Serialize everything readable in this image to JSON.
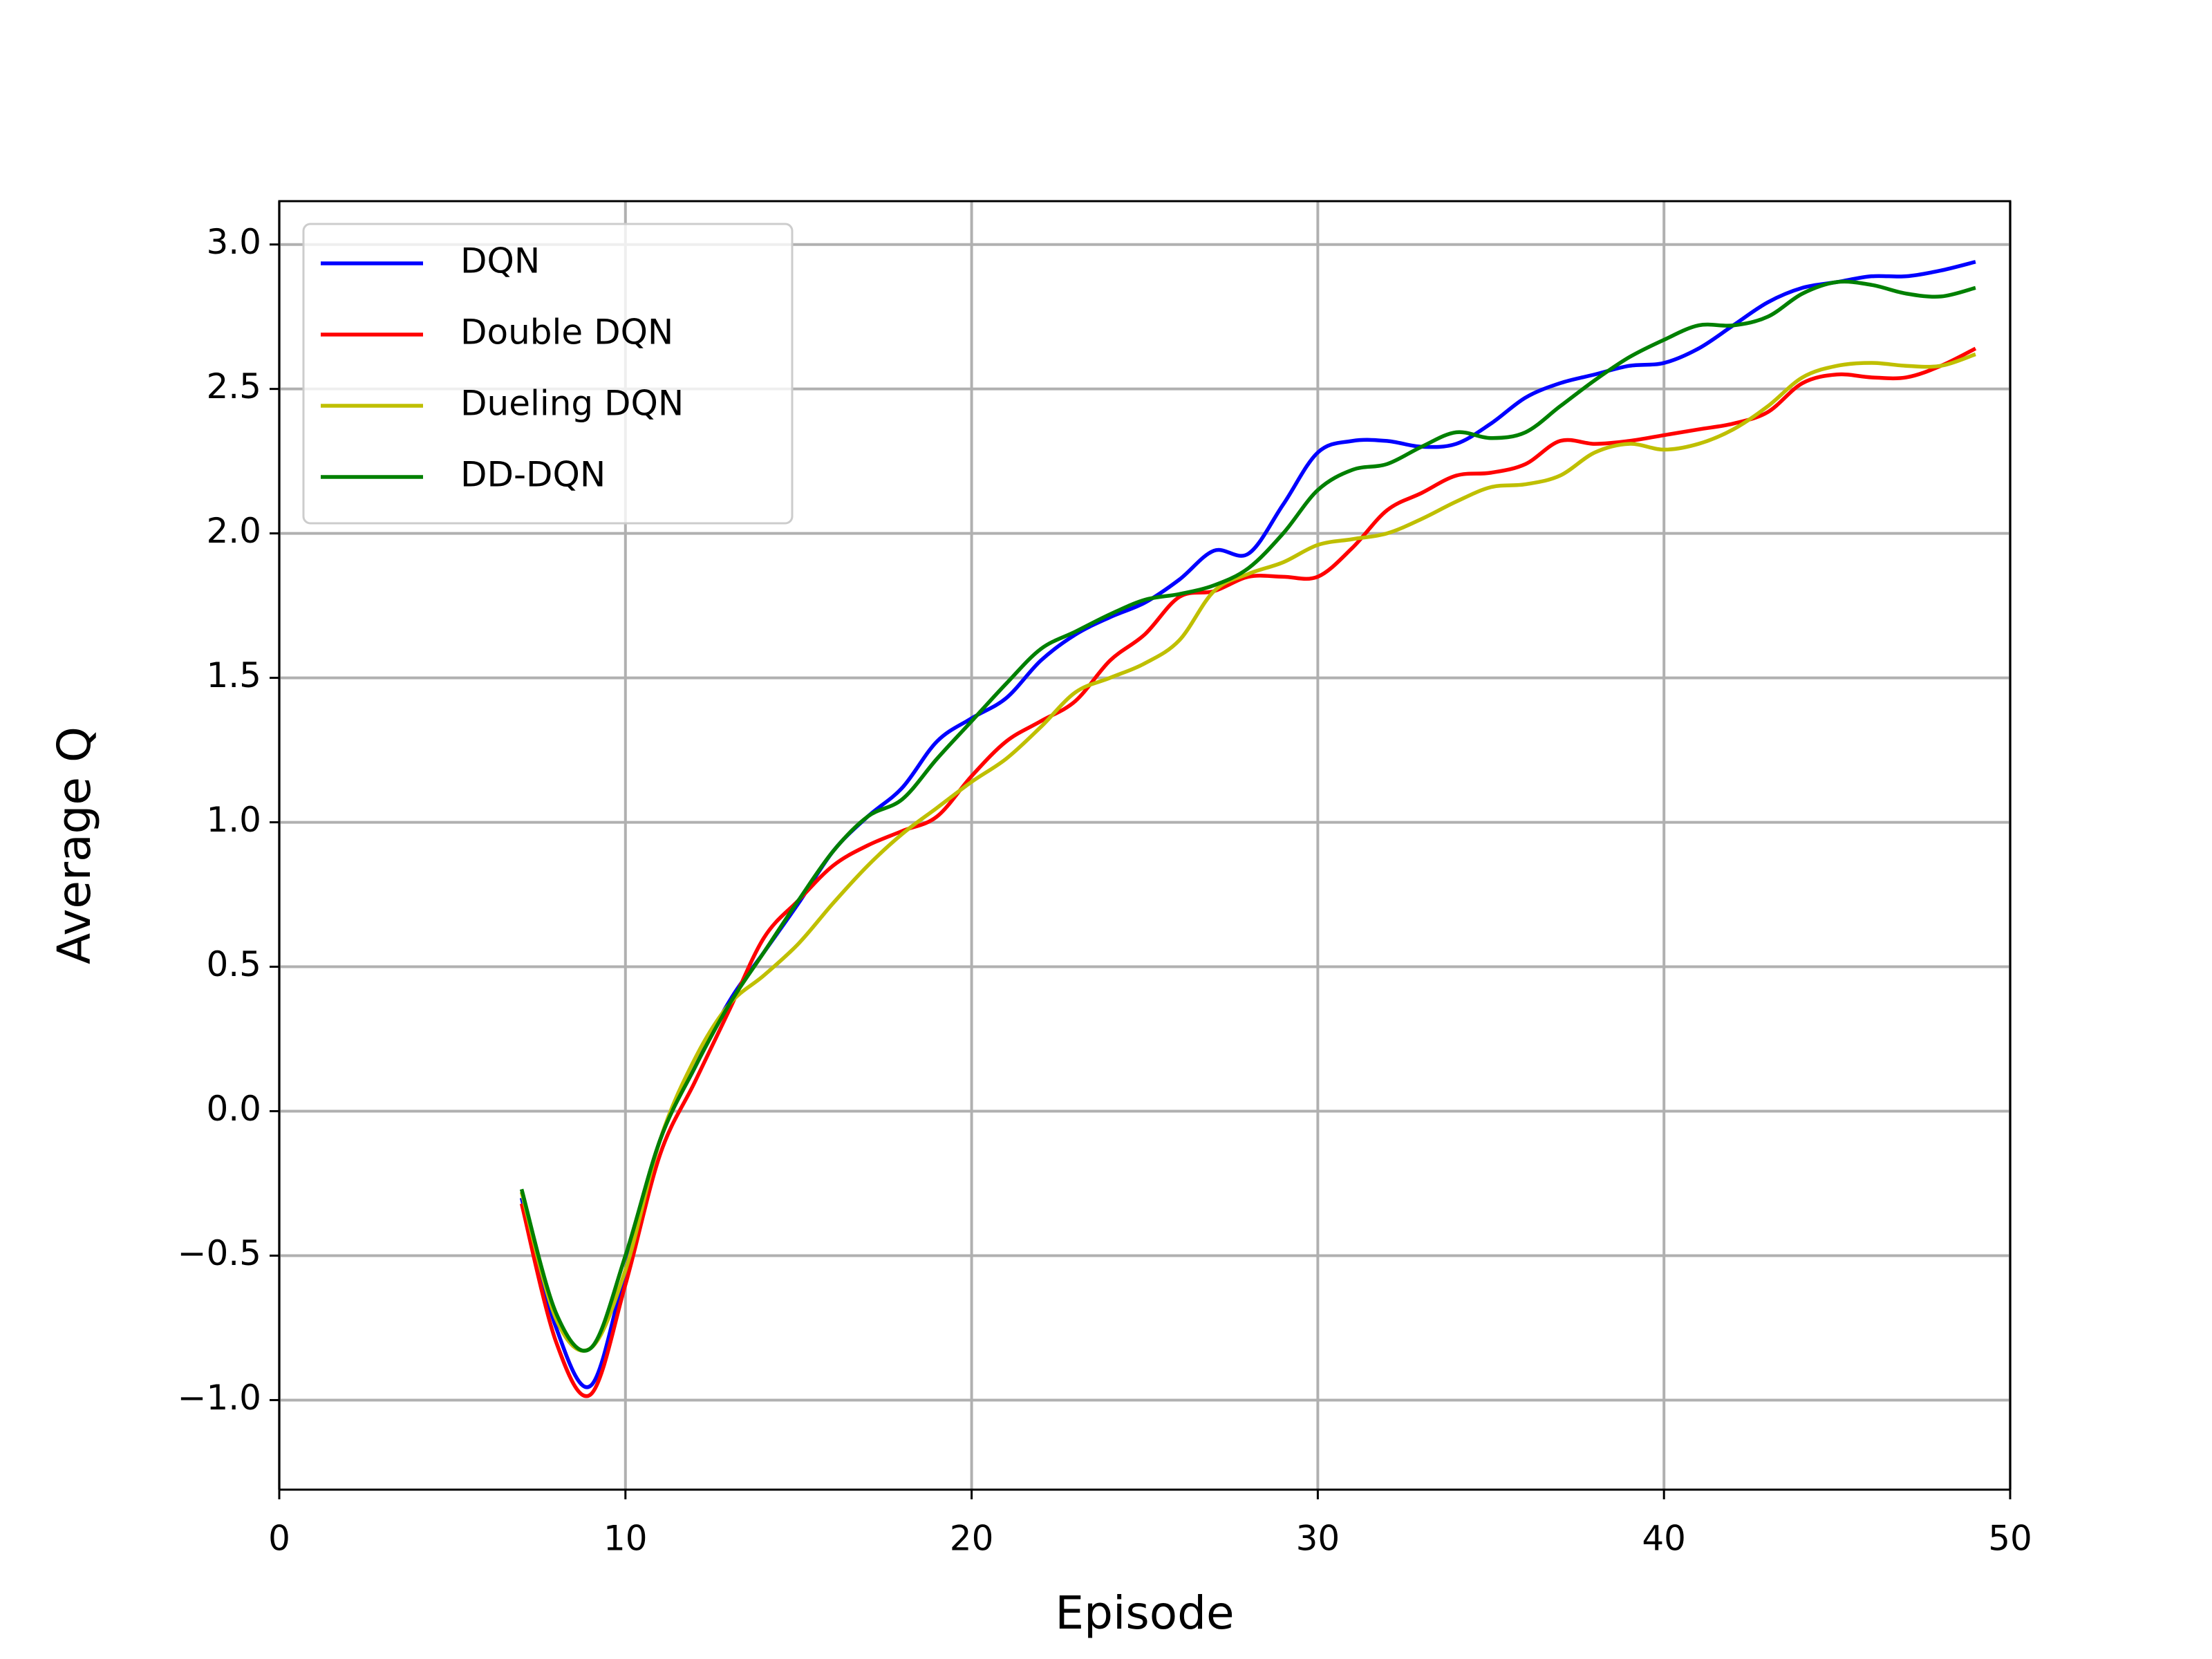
{
  "chart_data": {
    "type": "line",
    "xlabel": "Episode",
    "ylabel": "Average Q",
    "x": [
      7,
      8,
      9,
      10,
      11,
      12,
      13,
      14,
      15,
      16,
      17,
      18,
      19,
      20,
      21,
      22,
      23,
      24,
      25,
      26,
      27,
      28,
      29,
      30,
      31,
      32,
      33,
      34,
      35,
      36,
      37,
      38,
      39,
      40,
      41,
      42,
      43,
      44,
      45,
      46,
      47,
      48,
      49
    ],
    "series": [
      {
        "name": "DQN",
        "color": "#0000ff",
        "values": [
          -0.3,
          -0.75,
          -0.95,
          -0.55,
          -0.1,
          0.15,
          0.38,
          0.55,
          0.72,
          0.9,
          1.02,
          1.12,
          1.28,
          1.36,
          1.43,
          1.56,
          1.65,
          1.71,
          1.76,
          1.84,
          1.94,
          1.93,
          2.1,
          2.28,
          2.32,
          2.32,
          2.3,
          2.31,
          2.38,
          2.47,
          2.52,
          2.55,
          2.58,
          2.59,
          2.64,
          2.72,
          2.8,
          2.85,
          2.87,
          2.89,
          2.89,
          2.91,
          2.94
        ]
      },
      {
        "name": "Double DQN",
        "color": "#ff0000",
        "values": [
          -0.32,
          -0.8,
          -0.98,
          -0.6,
          -0.15,
          0.1,
          0.35,
          0.6,
          0.73,
          0.85,
          0.92,
          0.97,
          1.02,
          1.16,
          1.28,
          1.35,
          1.42,
          1.56,
          1.65,
          1.78,
          1.8,
          1.85,
          1.85,
          1.85,
          1.95,
          2.08,
          2.14,
          2.2,
          2.21,
          2.24,
          2.32,
          2.31,
          2.32,
          2.34,
          2.36,
          2.38,
          2.42,
          2.52,
          2.55,
          2.54,
          2.54,
          2.58,
          2.64
        ]
      },
      {
        "name": "Dueling DQN",
        "color": "#bfbf00",
        "values": [
          -0.28,
          -0.72,
          -0.82,
          -0.55,
          -0.1,
          0.18,
          0.37,
          0.47,
          0.58,
          0.72,
          0.85,
          0.96,
          1.05,
          1.14,
          1.22,
          1.33,
          1.45,
          1.5,
          1.55,
          1.63,
          1.8,
          1.86,
          1.9,
          1.96,
          1.98,
          2.0,
          2.05,
          2.11,
          2.16,
          2.17,
          2.2,
          2.28,
          2.31,
          2.29,
          2.31,
          2.36,
          2.44,
          2.54,
          2.58,
          2.59,
          2.58,
          2.58,
          2.62
        ]
      },
      {
        "name": "DD-DQN",
        "color": "#008000",
        "values": [
          -0.27,
          -0.7,
          -0.82,
          -0.5,
          -0.1,
          0.15,
          0.37,
          0.55,
          0.73,
          0.9,
          1.02,
          1.08,
          1.22,
          1.35,
          1.48,
          1.6,
          1.66,
          1.72,
          1.77,
          1.79,
          1.82,
          1.88,
          2.0,
          2.15,
          2.22,
          2.24,
          2.3,
          2.35,
          2.33,
          2.35,
          2.44,
          2.53,
          2.61,
          2.67,
          2.72,
          2.72,
          2.75,
          2.83,
          2.87,
          2.86,
          2.83,
          2.82,
          2.85
        ]
      }
    ],
    "xlim": [
      0,
      50
    ],
    "xticks": [
      0,
      10,
      20,
      30,
      40,
      50
    ],
    "ylim": [
      -1.31,
      3.15
    ],
    "yticks": [
      {
        "value": -1,
        "label": "−1.0"
      },
      {
        "value": -0.5,
        "label": "−0.5"
      },
      {
        "value": 0,
        "label": "0.0"
      },
      {
        "value": 0.5,
        "label": "0.5"
      },
      {
        "value": 1,
        "label": "1.0"
      },
      {
        "value": 1.5,
        "label": "1.5"
      },
      {
        "value": 2,
        "label": "2.0"
      },
      {
        "value": 2.5,
        "label": "2.5"
      },
      {
        "value": 3,
        "label": "3.0"
      }
    ],
    "grid": true,
    "legend": "upper left"
  }
}
